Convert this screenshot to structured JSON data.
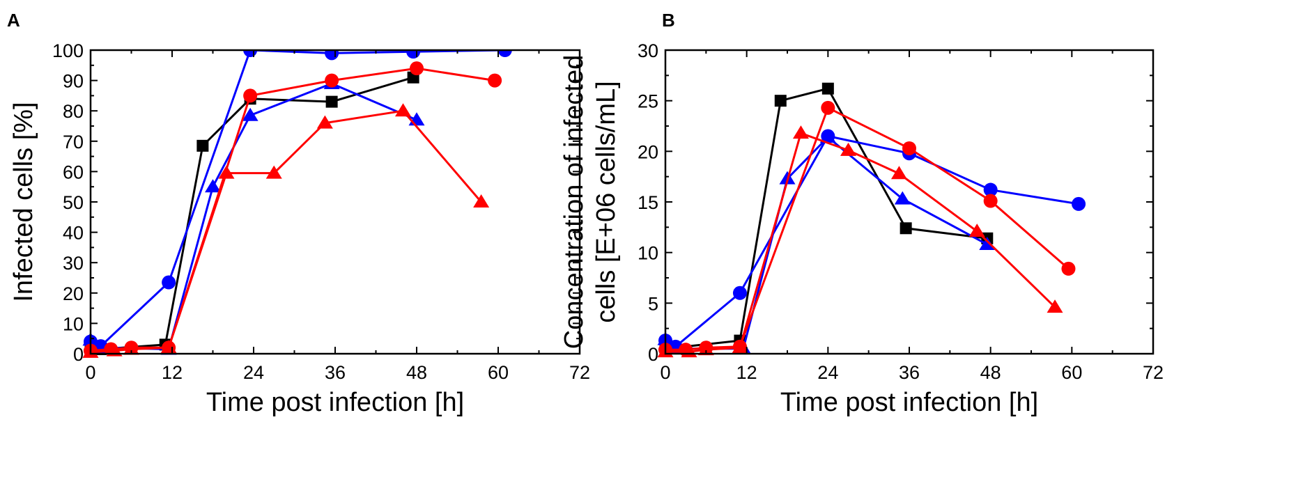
{
  "chart_data": [
    {
      "panel": "A",
      "type": "line",
      "xlabel": "Time post infection [h]",
      "ylabel": "Infected cells [%]",
      "xlim": [
        0,
        72
      ],
      "ylim": [
        0,
        100
      ],
      "xticks": [
        0,
        12,
        24,
        36,
        48,
        60,
        72
      ],
      "yticks": [
        0,
        10,
        20,
        30,
        40,
        50,
        60,
        70,
        80,
        90,
        100
      ],
      "grid": false,
      "series": [
        {
          "name": "black squares",
          "color": "#000000",
          "marker": "square",
          "x": [
            0,
            1.5,
            11,
            16.5,
            23.5,
            35.5,
            47.5
          ],
          "y": [
            1,
            1.5,
            3,
            68.5,
            84,
            83,
            91
          ]
        },
        {
          "name": "blue circles",
          "color": "#0000ff",
          "marker": "circle",
          "x": [
            0,
            1.5,
            11.5,
            23.5,
            35.5,
            47.5,
            61
          ],
          "y": [
            4,
            2.5,
            23.5,
            100,
            99,
            99.5,
            100
          ]
        },
        {
          "name": "blue triangles",
          "color": "#0000ff",
          "marker": "triangle",
          "x": [
            0,
            1.5,
            11.5,
            18,
            23.5,
            35.5,
            48
          ],
          "y": [
            4.5,
            2,
            1.5,
            55,
            78.5,
            89,
            77
          ]
        },
        {
          "name": "red circles",
          "color": "#ff0000",
          "marker": "circle",
          "x": [
            0,
            3,
            6,
            11.5,
            23.5,
            35.5,
            48,
            59.5
          ],
          "y": [
            1,
            1.5,
            2,
            2,
            85,
            90,
            94,
            90
          ]
        },
        {
          "name": "red triangles",
          "color": "#ff0000",
          "marker": "triangle",
          "x": [
            0,
            3.5,
            6,
            11.5,
            20,
            27,
            34.5,
            46,
            57.5
          ],
          "y": [
            0.5,
            1,
            1.5,
            2,
            59.5,
            59.5,
            76,
            80,
            50
          ]
        }
      ]
    },
    {
      "panel": "B",
      "type": "line",
      "xlabel": "Time post infection [h]",
      "ylabel_lines": [
        "Concentration of infected",
        "cells [E+06 cells/mL]"
      ],
      "xlim": [
        0,
        72
      ],
      "ylim": [
        0,
        30
      ],
      "xticks": [
        0,
        12,
        24,
        36,
        48,
        60,
        72
      ],
      "yticks": [
        0,
        5,
        10,
        15,
        20,
        25,
        30
      ],
      "grid": false,
      "series": [
        {
          "name": "black squares",
          "color": "#000000",
          "marker": "square",
          "x": [
            0,
            1.5,
            11,
            17,
            24,
            35.5,
            47.5
          ],
          "y": [
            0.7,
            0.6,
            1.3,
            25,
            26.2,
            12.4,
            11.4
          ]
        },
        {
          "name": "blue circles",
          "color": "#0000ff",
          "marker": "circle",
          "x": [
            0,
            1.5,
            11,
            24,
            36,
            48,
            61
          ],
          "y": [
            1.3,
            0.7,
            6,
            21.5,
            19.8,
            16.2,
            14.8
          ]
        },
        {
          "name": "blue triangles",
          "color": "#0000ff",
          "marker": "triangle",
          "x": [
            0,
            1.5,
            11.5,
            18,
            24,
            35,
            47.5
          ],
          "y": [
            1.4,
            0.5,
            0.5,
            17.3,
            21.4,
            15.3,
            10.8
          ]
        },
        {
          "name": "red circles",
          "color": "#ff0000",
          "marker": "circle",
          "x": [
            0,
            3,
            6,
            11,
            24,
            36,
            48,
            59.5
          ],
          "y": [
            0.4,
            0.4,
            0.6,
            0.7,
            24.3,
            20.3,
            15.1,
            8.4
          ]
        },
        {
          "name": "red triangles",
          "color": "#ff0000",
          "marker": "triangle",
          "x": [
            0,
            3.5,
            6,
            11,
            20,
            27,
            34.5,
            46,
            57.5
          ],
          "y": [
            0.2,
            0.2,
            0.4,
            0.6,
            21.8,
            20.1,
            17.8,
            12.1,
            4.6
          ]
        }
      ]
    }
  ]
}
